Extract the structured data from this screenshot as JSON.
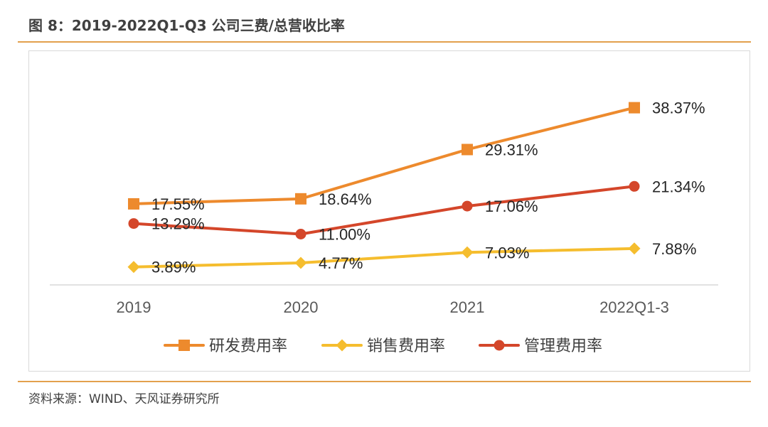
{
  "figure": {
    "title": "图 8：2019-2022Q1-Q3 公司三费/总营收比率",
    "source": "资料来源：WIND、天风证券研究所"
  },
  "chart_data": {
    "type": "line",
    "categories": [
      "2019",
      "2020",
      "2021",
      "2022Q1-3"
    ],
    "ylim": [
      0,
      45
    ],
    "grid": false,
    "legend_position": "bottom",
    "series": [
      {
        "name": "研发费用率",
        "marker": "square",
        "color": "#ed8a2d",
        "values": [
          17.55,
          18.64,
          29.31,
          38.37
        ],
        "labels": [
          "17.55%",
          "18.64%",
          "29.31%",
          "38.37%"
        ]
      },
      {
        "name": "销售费用率",
        "marker": "diamond",
        "color": "#f5bd2e",
        "values": [
          3.89,
          4.77,
          7.03,
          7.88
        ],
        "labels": [
          "3.89%",
          "4.77%",
          "7.03%",
          "7.88%"
        ]
      },
      {
        "name": "管理费用率",
        "marker": "circle",
        "color": "#d4462a",
        "values": [
          13.29,
          11.0,
          17.06,
          21.34
        ],
        "labels": [
          "13.29%",
          "11.00%",
          "17.06%",
          "21.34%"
        ]
      }
    ]
  }
}
